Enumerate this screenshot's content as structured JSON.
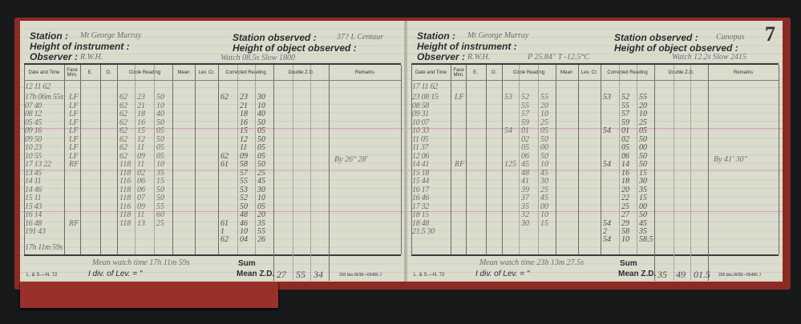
{
  "colors": {
    "cover": "#8e2a24",
    "paper": "#dcdccd",
    "ink": "#6b6d6e"
  },
  "labels": {
    "station": "Station :",
    "height_instrument": "Height of instrument :",
    "observer": "Observer :",
    "station_observed": "Station observed :",
    "height_object": "Height of object observed :",
    "sum": "Sum",
    "mean_zd": "Mean Z.D.",
    "div_lev": "I div. of Lev. = \"",
    "form_no": "L. & S.—N. 72",
    "print_no": "200 bks./8/38—65456 J"
  },
  "columns": [
    "Date and Time",
    "Face Mim.",
    "E.",
    "O.",
    "Circle Reading",
    "Mean",
    "Lev. Cr.",
    "Corrected Reading",
    "Double Z.D.",
    "Remarks"
  ],
  "pages": [
    {
      "station": "Mt George Murray",
      "station_observed": "37? L Centaur",
      "observer": "R.W.H.",
      "note": "Watch 08.5s Slow 1800",
      "mean_watch_time": "Mean watch time 17h 11m 59s",
      "mean_zd": [
        "27",
        "55",
        "34"
      ],
      "rows": [
        {
          "date": "12 11 62"
        },
        {
          "date": "17h 06m 55s",
          "face": "LF",
          "circle": [
            "62",
            "23",
            "50"
          ],
          "corrected": [
            "62",
            "23",
            "30"
          ]
        },
        {
          "date": "07 40",
          "face": "LF",
          "circle": [
            "62",
            "21",
            "10"
          ],
          "corrected": [
            "",
            "21",
            "10"
          ]
        },
        {
          "date": "08 12",
          "face": "LF",
          "circle": [
            "62",
            "18",
            "40"
          ],
          "corrected": [
            "",
            "18",
            "40"
          ]
        },
        {
          "date": "05 45",
          "face": "LF",
          "circle": [
            "62",
            "16",
            "50"
          ],
          "corrected": [
            "",
            "16",
            "50"
          ]
        },
        {
          "date": "09 16",
          "face": "LF",
          "circle": [
            "62",
            "15",
            "05"
          ],
          "corrected": [
            "",
            "15",
            "05"
          ]
        },
        {
          "date": "09 50",
          "face": "LF",
          "circle": [
            "62",
            "12",
            "50"
          ],
          "corrected": [
            "",
            "12",
            "50"
          ]
        },
        {
          "date": "10 23",
          "face": "LF",
          "circle": [
            "62",
            "11",
            "05"
          ],
          "corrected": [
            "",
            "11",
            "05"
          ]
        },
        {
          "date": "10 55",
          "face": "LF",
          "circle": [
            "62",
            "09",
            "05"
          ],
          "corrected": [
            "62",
            "09",
            "05"
          ],
          "remarks": "By 26° 28'"
        },
        {
          "date": "17 13 22",
          "face": "RF",
          "circle": [
            "118",
            "11",
            "10"
          ],
          "corrected": [
            "61",
            "58",
            "50"
          ]
        },
        {
          "date": "13 45",
          "circle": [
            "118",
            "02",
            "35"
          ],
          "corrected": [
            "",
            "57",
            "25"
          ]
        },
        {
          "date": "14 11",
          "circle": [
            "116",
            "06",
            "15"
          ],
          "corrected": [
            "",
            "55",
            "45"
          ]
        },
        {
          "date": "14 46",
          "circle": [
            "118",
            "06",
            "50"
          ],
          "corrected": [
            "",
            "53",
            "30"
          ]
        },
        {
          "date": "15 11",
          "circle": [
            "118",
            "07",
            "50"
          ],
          "corrected": [
            "",
            "52",
            "10"
          ]
        },
        {
          "date": "15 43",
          "circle": [
            "116",
            "09",
            "55"
          ],
          "corrected": [
            "",
            "50",
            "05"
          ]
        },
        {
          "date": "16 14",
          "circle": [
            "118",
            "11",
            "60"
          ],
          "corrected": [
            "",
            "48",
            "20"
          ]
        },
        {
          "date": "16 48",
          "face": "RF",
          "circle": [
            "118",
            "13",
            "25"
          ],
          "corrected": [
            "61",
            "46",
            "35"
          ]
        },
        {
          "date": "191 43",
          "corrected": [
            "1",
            "10",
            "55"
          ]
        },
        {
          "date": "",
          "corrected": [
            "62",
            "04",
            "26"
          ]
        },
        {
          "date": "17h 11m 59s"
        }
      ]
    },
    {
      "station": "Mt George Murray",
      "station_observed": "Canopus",
      "observer": "R.W.H.",
      "note": "P 25.84\"   T -12.5°C",
      "note2": "Watch 12.2s Slow 2415",
      "page_number": "7",
      "mean_watch_time": "Mean watch time 23h 13m 27.5s",
      "mean_zd": [
        "35",
        "49",
        "01.5"
      ],
      "rows": [
        {
          "date": "17 11 62"
        },
        {
          "date": "23 08 15",
          "face": "LF",
          "circle": [
            "53",
            "52",
            "55"
          ],
          "corrected": [
            "53",
            "52",
            "55"
          ]
        },
        {
          "date": "08 58",
          "circle": [
            "",
            "55",
            "20"
          ],
          "corrected": [
            "",
            "55",
            "20"
          ]
        },
        {
          "date": "09 31",
          "circle": [
            "",
            "57",
            "10"
          ],
          "corrected": [
            "",
            "57",
            "10"
          ]
        },
        {
          "date": "10 07",
          "circle": [
            "",
            "59",
            "25"
          ],
          "corrected": [
            "",
            "59",
            "25"
          ]
        },
        {
          "date": "10 33",
          "circle": [
            "54",
            "01",
            "05"
          ],
          "corrected": [
            "54",
            "01",
            "05"
          ]
        },
        {
          "date": "11 05",
          "circle": [
            "",
            "02",
            "50"
          ],
          "corrected": [
            "",
            "02",
            "50"
          ]
        },
        {
          "date": "11 37",
          "circle": [
            "",
            "05",
            "00"
          ],
          "corrected": [
            "",
            "05",
            "00"
          ]
        },
        {
          "date": "12 06",
          "circle": [
            "",
            "06",
            "50"
          ],
          "corrected": [
            "",
            "06",
            "50"
          ],
          "remarks": "By 41' 30\""
        },
        {
          "date": "14 41",
          "face": "RF",
          "circle": [
            "125",
            "45",
            "10"
          ],
          "corrected": [
            "54",
            "14",
            "50"
          ]
        },
        {
          "date": "15 18",
          "circle": [
            "",
            "48",
            "45"
          ],
          "corrected": [
            "",
            "16",
            "15"
          ]
        },
        {
          "date": "15 44",
          "circle": [
            "",
            "41",
            "30"
          ],
          "corrected": [
            "",
            "18",
            "30"
          ]
        },
        {
          "date": "16 17",
          "circle": [
            "",
            "39",
            "25"
          ],
          "corrected": [
            "",
            "20",
            "35"
          ]
        },
        {
          "date": "16 46",
          "circle": [
            "",
            "37",
            "45"
          ],
          "corrected": [
            "",
            "22",
            "15"
          ]
        },
        {
          "date": "17 32",
          "circle": [
            "",
            "35",
            "00"
          ],
          "corrected": [
            "",
            "25",
            "00"
          ]
        },
        {
          "date": "18 15",
          "circle": [
            "",
            "32",
            "10"
          ],
          "corrected": [
            "",
            "27",
            "50"
          ]
        },
        {
          "date": "18 48",
          "circle": [
            "",
            "30",
            "15"
          ],
          "corrected": [
            "54",
            "29",
            "45"
          ]
        },
        {
          "date": "21.5 30",
          "corrected": [
            "2",
            "58",
            "35"
          ]
        },
        {
          "date": "",
          "corrected": [
            "54",
            "10",
            "58.5"
          ]
        }
      ]
    }
  ]
}
